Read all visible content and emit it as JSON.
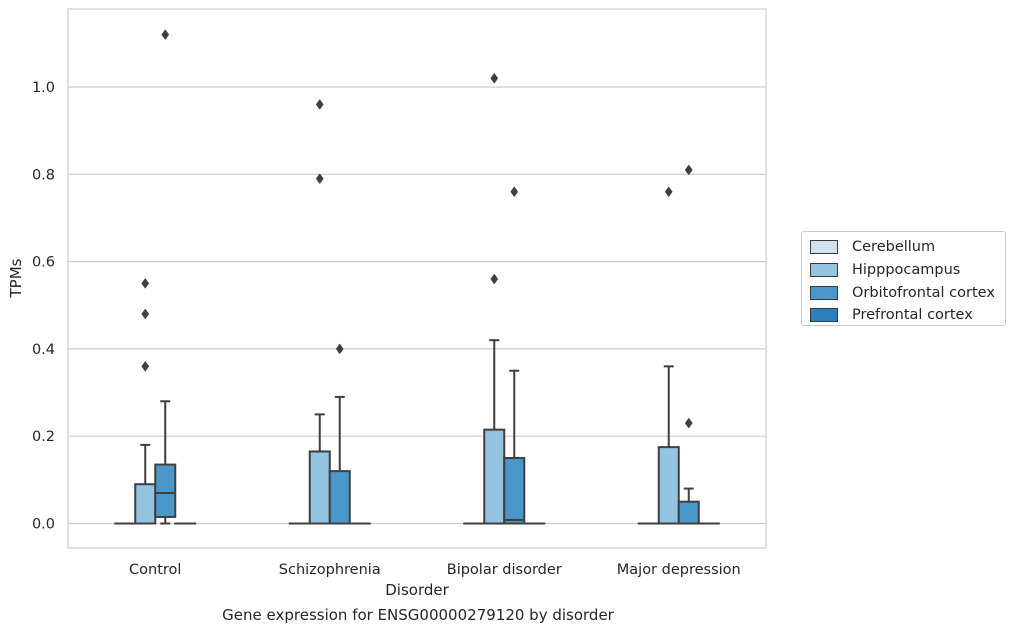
{
  "caption": "Gene expression for ENSG00000279120 by disorder",
  "chart_data": {
    "type": "box",
    "xlabel": "Disorder",
    "ylabel": "TPMs",
    "categories": [
      "Control",
      "Schizophrenia",
      "Bipolar disorder",
      "Major depression"
    ],
    "yticks": [
      "0.0",
      "0.2",
      "0.4",
      "0.6",
      "0.8",
      "1.0"
    ],
    "ylim": [
      -0.055,
      1.18
    ],
    "grid": true,
    "legend_position": "right",
    "series": [
      {
        "name": "Cerebellum",
        "color": "#d0e1f2",
        "boxes": [
          {
            "min": 0,
            "q1": 0,
            "median": 0,
            "q3": 0,
            "max": 0,
            "outliers": []
          },
          {
            "min": 0,
            "q1": 0,
            "median": 0,
            "q3": 0,
            "max": 0,
            "outliers": []
          },
          {
            "min": 0,
            "q1": 0,
            "median": 0,
            "q3": 0,
            "max": 0,
            "outliers": []
          },
          {
            "min": 0,
            "q1": 0,
            "median": 0,
            "q3": 0,
            "max": 0,
            "outliers": []
          }
        ]
      },
      {
        "name": "Hipppocampus",
        "color": "#94c4df",
        "boxes": [
          {
            "min": 0,
            "q1": 0,
            "median": 0,
            "q3": 0.09,
            "max": 0.18,
            "outliers": [
              0.36,
              0.48,
              0.55
            ]
          },
          {
            "min": 0,
            "q1": 0,
            "median": 0,
            "q3": 0.165,
            "max": 0.25,
            "outliers": [
              0.79,
              0.96
            ]
          },
          {
            "min": 0,
            "q1": 0,
            "median": 0,
            "q3": 0.215,
            "max": 0.42,
            "outliers": [
              0.56,
              1.02
            ]
          },
          {
            "min": 0,
            "q1": 0,
            "median": 0,
            "q3": 0.175,
            "max": 0.36,
            "outliers": [
              0.76
            ]
          }
        ]
      },
      {
        "name": "Orbitofrontal cortex",
        "color": "#4a98c9",
        "boxes": [
          {
            "min": 0,
            "q1": 0.015,
            "median": 0.07,
            "q3": 0.135,
            "max": 0.28,
            "outliers": [
              1.12
            ]
          },
          {
            "min": 0,
            "q1": 0,
            "median": 0,
            "q3": 0.12,
            "max": 0.29,
            "outliers": [
              0.4
            ]
          },
          {
            "min": 0,
            "q1": 0,
            "median": 0.008,
            "q3": 0.15,
            "max": 0.35,
            "outliers": [
              0.76
            ]
          },
          {
            "min": 0,
            "q1": 0,
            "median": 0,
            "q3": 0.05,
            "max": 0.08,
            "outliers": [
              0.23,
              0.81
            ]
          }
        ]
      },
      {
        "name": "Prefrontal cortex",
        "color": "#2e7ebc",
        "boxes": [
          {
            "min": 0,
            "q1": 0,
            "median": 0,
            "q3": 0,
            "max": 0,
            "outliers": []
          },
          {
            "min": 0,
            "q1": 0,
            "median": 0,
            "q3": 0,
            "max": 0,
            "outliers": []
          },
          {
            "min": 0,
            "q1": 0,
            "median": 0,
            "q3": 0,
            "max": 0,
            "outliers": []
          },
          {
            "min": 0,
            "q1": 0,
            "median": 0,
            "q3": 0,
            "max": 0,
            "outliers": []
          }
        ]
      }
    ]
  }
}
